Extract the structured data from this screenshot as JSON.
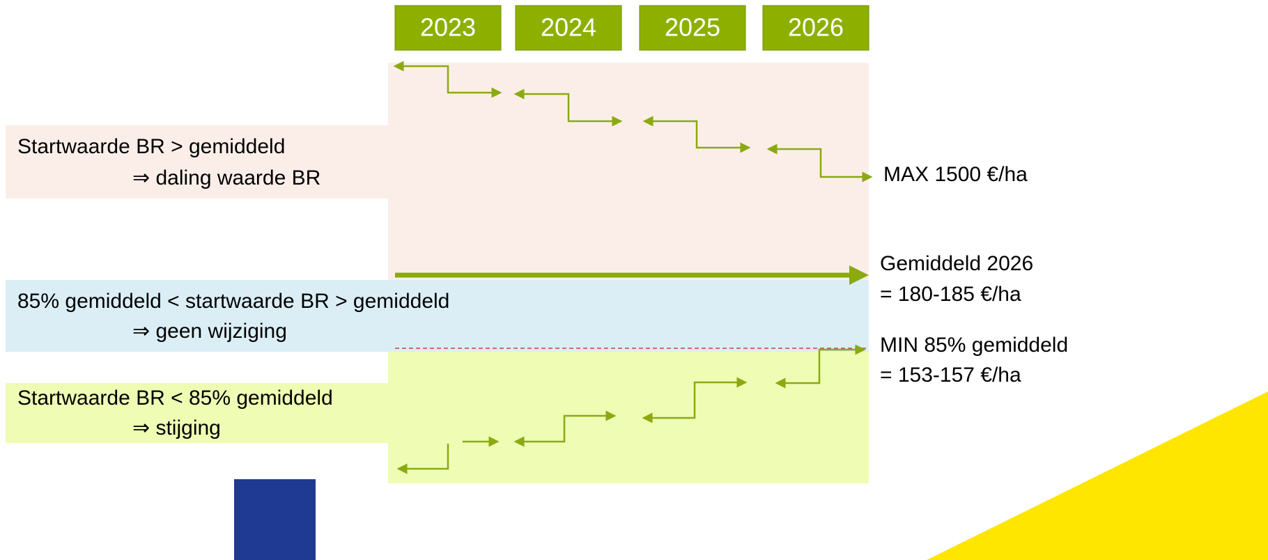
{
  "years": [
    "2023",
    "2024",
    "2025",
    "2026"
  ],
  "zones": [
    {
      "line1": "Startwaarde BR > gemiddeld",
      "line2": "⇒ daling waarde BR"
    },
    {
      "line1": "85% gemiddeld < startwaarde BR > gemiddeld",
      "line2": "⇒ geen wijziging"
    },
    {
      "line1": "Startwaarde BR < 85% gemiddeld",
      "line2": "⇒ stijging"
    }
  ],
  "right_labels": {
    "max": "MAX 1500 €/ha",
    "avg_title": "Gemiddeld 2026",
    "avg_value": "= 180-185 €/ha",
    "min_title": "MIN 85% gemiddeld",
    "min_value": "= 153-157 €/ha"
  }
}
